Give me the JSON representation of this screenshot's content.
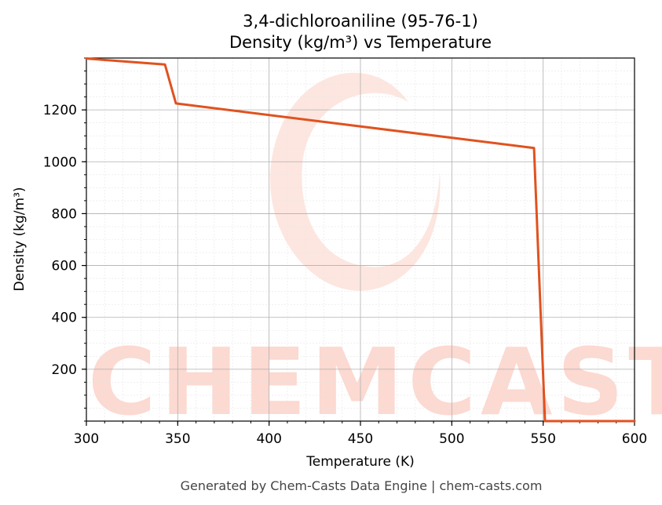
{
  "chart_data": {
    "type": "line",
    "title": "3,4-dichloroaniline (95-76-1)",
    "subtitle": "Density (kg/m³) vs Temperature",
    "xlabel": "Temperature (K)",
    "ylabel": "Density (kg/m³)",
    "xlim": [
      300,
      600
    ],
    "ylim": [
      0,
      1400
    ],
    "xticks": [
      300,
      350,
      400,
      450,
      500,
      550,
      600
    ],
    "yticks": [
      200,
      400,
      600,
      800,
      1000,
      1200
    ],
    "grid": true,
    "legend": "none",
    "series": [
      {
        "color": "#e0521f",
        "x": [
          300,
          343,
          349,
          545,
          551,
          600
        ],
        "y": [
          1398,
          1375,
          1225,
          1053,
          0,
          0
        ]
      }
    ]
  },
  "footer": "Generated by Chem-Casts Data Engine | chem-casts.com",
  "watermark": "CHEMCASTS"
}
